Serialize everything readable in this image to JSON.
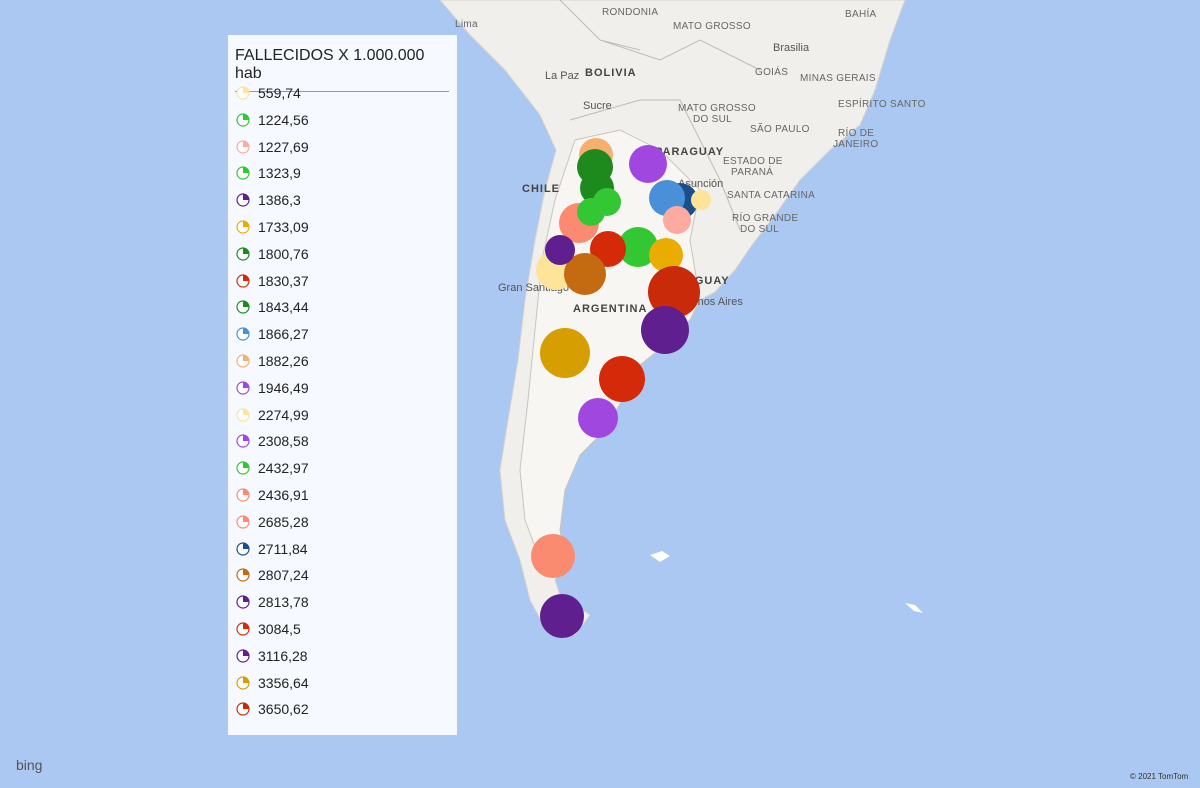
{
  "map": {
    "labels": [
      "Lima",
      "RONDONIA",
      "MATO GROSSO",
      "BAHÍA",
      "Brasilia",
      "La Paz",
      "BOLIVIA",
      "GOIÁS",
      "MINAS GERAIS",
      "Sucre",
      "MATO GROSSO",
      "DO SUL",
      "ESPÍRITO SANTO",
      "SÃO PAULO",
      "RÍO DE",
      "JANEIRO",
      "PARAGUAY",
      "ESTADO DE",
      "PARANÁ",
      "SANTA CATARINA",
      "RÍO GRANDE",
      "DO SUL",
      "Asunción",
      "CHILE",
      "Gran Santiago",
      "ARGENTINA",
      "URUGUAY",
      "Buenos Aires"
    ],
    "attribution": {
      "logo": "bing",
      "copyright": "© 2021 TomTom"
    }
  },
  "legend": {
    "title": "FALLECIDOS X 1.000.000 hab",
    "items": [
      {
        "label": "559,74",
        "color": "#fde499"
      },
      {
        "label": "1224,56",
        "color": "#33c733"
      },
      {
        "label": "1227,69",
        "color": "#fdaaa0"
      },
      {
        "label": "1323,9",
        "color": "#33c733"
      },
      {
        "label": "1386,3",
        "color": "#5f1f8f"
      },
      {
        "label": "1733,09",
        "color": "#e8ad00"
      },
      {
        "label": "1800,76",
        "color": "#1e8a1e"
      },
      {
        "label": "1830,37",
        "color": "#d42a0a"
      },
      {
        "label": "1843,44",
        "color": "#1e8a1e"
      },
      {
        "label": "1866,27",
        "color": "#4a90d9"
      },
      {
        "label": "1882,26",
        "color": "#f5b070"
      },
      {
        "label": "1946,49",
        "color": "#a047e0"
      },
      {
        "label": "2274,99",
        "color": "#fde499"
      },
      {
        "label": "2308,58",
        "color": "#a047e0"
      },
      {
        "label": "2432,97",
        "color": "#33c733"
      },
      {
        "label": "2436,91",
        "color": "#fa8a70"
      },
      {
        "label": "2685,28",
        "color": "#fa8a70"
      },
      {
        "label": "2711,84",
        "color": "#1a4f8a"
      },
      {
        "label": "2807,24",
        "color": "#c46a10"
      },
      {
        "label": "2813,78",
        "color": "#5f1f8f"
      },
      {
        "label": "3084,5",
        "color": "#d42a0a"
      },
      {
        "label": "3116,28",
        "color": "#5f1f8f"
      },
      {
        "label": "3356,64",
        "color": "#d69e00"
      },
      {
        "label": "3650,62",
        "color": "#c82a0a"
      }
    ]
  }
}
